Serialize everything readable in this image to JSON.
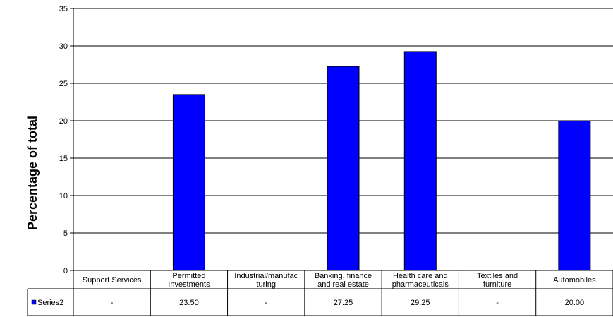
{
  "chart_data": {
    "type": "bar",
    "ylabel": "Percentage of total",
    "xlabel": "",
    "title": "",
    "ylim": [
      0,
      35
    ],
    "yticks": [
      0,
      5,
      10,
      15,
      20,
      25,
      30,
      35
    ],
    "grid": true,
    "legend": "in data table",
    "categories": [
      [
        "Support Services"
      ],
      [
        "Permitted",
        "Investments"
      ],
      [
        "Industrial/manufac",
        "turing"
      ],
      [
        "Banking, finance",
        "and real estate"
      ],
      [
        "Health care and",
        "pharmaceuticals"
      ],
      [
        "Textiles and",
        "furniture"
      ],
      [
        "Automobiles"
      ]
    ],
    "series": [
      {
        "name": "Series2",
        "color": "#0000FF",
        "values": [
          null,
          23.5,
          null,
          27.25,
          29.25,
          null,
          20.0
        ],
        "labels": [
          "-",
          "23.50",
          "-",
          "27.25",
          "29.25",
          "-",
          "20.00"
        ]
      }
    ]
  }
}
